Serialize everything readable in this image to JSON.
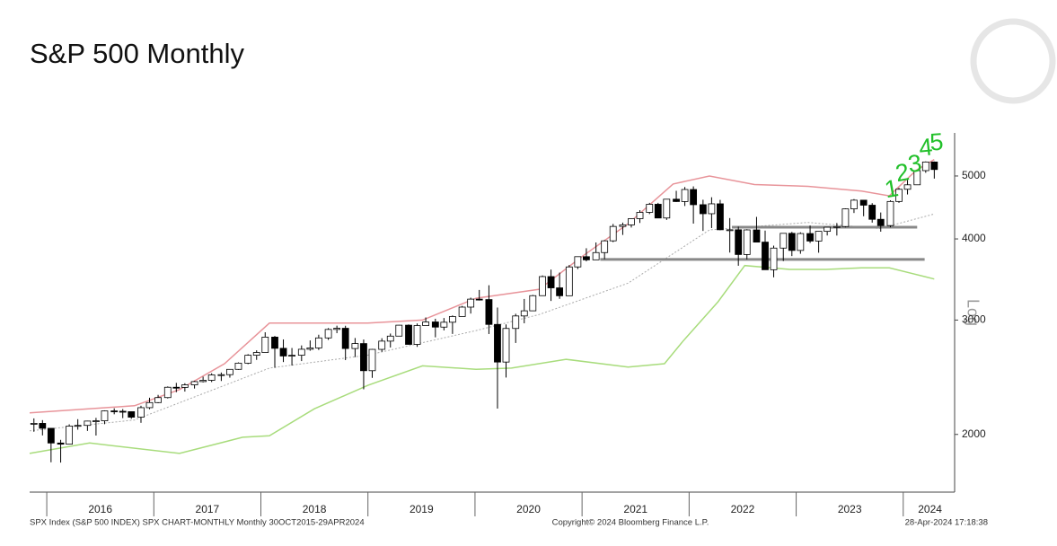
{
  "chart_data": {
    "type": "candlestick",
    "title": "S&P 500 Monthly",
    "y_label": "Log",
    "log_scale": true,
    "ylim": [
      1630,
      5825
    ],
    "yticks": [
      2000,
      3000,
      4000,
      5000
    ],
    "xlim": [
      2015.84,
      2024.48
    ],
    "xticks": [
      {
        "value": 2016.5,
        "label": "2016"
      },
      {
        "value": 2017.5,
        "label": "2017"
      },
      {
        "value": 2018.5,
        "label": "2018"
      },
      {
        "value": 2019.5,
        "label": "2019"
      },
      {
        "value": 2020.5,
        "label": "2020"
      },
      {
        "value": 2021.5,
        "label": "2021"
      },
      {
        "value": 2022.5,
        "label": "2022"
      },
      {
        "value": 2023.5,
        "label": "2023"
      },
      {
        "value": 2024.25,
        "label": "2024"
      }
    ],
    "year_dividers": [
      2016,
      2017,
      2018,
      2019,
      2020,
      2021,
      2022,
      2023,
      2024
    ],
    "up_color": "#ffffff",
    "down_color": "#000000",
    "x": [
      2015.88,
      2015.96,
      2016.04,
      2016.13,
      2016.21,
      2016.29,
      2016.38,
      2016.46,
      2016.54,
      2016.63,
      2016.71,
      2016.79,
      2016.88,
      2016.96,
      2017.04,
      2017.13,
      2017.21,
      2017.29,
      2017.38,
      2017.46,
      2017.54,
      2017.63,
      2017.71,
      2017.79,
      2017.88,
      2017.96,
      2018.04,
      2018.13,
      2018.21,
      2018.29,
      2018.38,
      2018.46,
      2018.54,
      2018.63,
      2018.71,
      2018.79,
      2018.88,
      2018.96,
      2019.04,
      2019.13,
      2019.21,
      2019.29,
      2019.38,
      2019.46,
      2019.54,
      2019.63,
      2019.71,
      2019.79,
      2019.88,
      2019.96,
      2020.04,
      2020.13,
      2020.21,
      2020.29,
      2020.38,
      2020.46,
      2020.54,
      2020.63,
      2020.71,
      2020.79,
      2020.88,
      2020.96,
      2021.04,
      2021.13,
      2021.21,
      2021.29,
      2021.38,
      2021.46,
      2021.54,
      2021.63,
      2021.71,
      2021.79,
      2021.88,
      2021.96,
      2022.04,
      2022.13,
      2022.21,
      2022.29,
      2022.38,
      2022.46,
      2022.54,
      2022.63,
      2022.71,
      2022.79,
      2022.88,
      2022.96,
      2023.04,
      2023.13,
      2023.21,
      2023.29,
      2023.38,
      2023.46,
      2023.54,
      2023.63,
      2023.71,
      2023.79,
      2023.88,
      2023.96,
      2024.04,
      2024.13,
      2024.21,
      2024.29
    ],
    "open": [
      2079,
      2080,
      2044,
      1940,
      1932,
      2060,
      2065,
      2097,
      2099,
      2174,
      2171,
      2168,
      2126,
      2199,
      2239,
      2279,
      2364,
      2363,
      2384,
      2412,
      2423,
      2470,
      2472,
      2519,
      2575,
      2648,
      2674,
      2824,
      2714,
      2641,
      2648,
      2705,
      2718,
      2816,
      2902,
      2914,
      2712,
      2760,
      2507,
      2704,
      2784,
      2834,
      2946,
      2752,
      2942,
      2980,
      2926,
      2977,
      3038,
      3141,
      3231,
      3226,
      2954,
      2585,
      2912,
      3044,
      3100,
      3271,
      3500,
      3363,
      3270,
      3622,
      3756,
      3714,
      3811,
      3973,
      4181,
      4204,
      4298,
      4395,
      4523,
      4308,
      4605,
      4567,
      4766,
      4516,
      4374,
      4530,
      4132,
      4132,
      3785,
      4130,
      3955,
      3586,
      3872,
      4080,
      3840,
      4077,
      3970,
      4109,
      4169,
      4180,
      4450,
      4589,
      4508,
      4288,
      4194,
      4568,
      4770,
      4846,
      5096,
      5254
    ],
    "high": [
      2117,
      2104,
      2044,
      1962,
      2073,
      2111,
      2100,
      2121,
      2178,
      2194,
      2188,
      2170,
      2214,
      2278,
      2301,
      2371,
      2401,
      2398,
      2419,
      2454,
      2484,
      2491,
      2520,
      2582,
      2658,
      2695,
      2873,
      2836,
      2801,
      2717,
      2742,
      2791,
      2848,
      2916,
      2941,
      2940,
      2815,
      2800,
      2708,
      2813,
      2860,
      2949,
      2954,
      2964,
      3028,
      3014,
      3022,
      3050,
      3154,
      3248,
      3338,
      3394,
      3136,
      2954,
      3068,
      3233,
      3280,
      3514,
      3588,
      3550,
      3646,
      3760,
      3870,
      3950,
      3983,
      4218,
      4238,
      4302,
      4429,
      4546,
      4546,
      4608,
      4744,
      4808,
      4819,
      4596,
      4637,
      4594,
      4307,
      4178,
      4140,
      4325,
      4120,
      3906,
      4080,
      4101,
      4095,
      4195,
      4111,
      4170,
      4232,
      4458,
      4607,
      4595,
      4541,
      4393,
      4587,
      4794,
      4932,
      5111,
      5265,
      5264
    ],
    "low": [
      2019,
      1993,
      1812,
      1810,
      1932,
      2034,
      2025,
      1992,
      2074,
      2148,
      2119,
      2114,
      2084,
      2187,
      2234,
      2272,
      2323,
      2328,
      2353,
      2405,
      2408,
      2417,
      2446,
      2515,
      2566,
      2605,
      2674,
      2533,
      2585,
      2553,
      2594,
      2691,
      2698,
      2796,
      2864,
      2603,
      2631,
      2347,
      2444,
      2681,
      2722,
      2834,
      2750,
      2728,
      2942,
      2822,
      2892,
      2856,
      3038,
      3070,
      3215,
      2855,
      2192,
      2447,
      2766,
      2966,
      3100,
      3271,
      3210,
      3234,
      3270,
      3594,
      3694,
      3714,
      3723,
      3955,
      4057,
      4165,
      4233,
      4368,
      4306,
      4279,
      4560,
      4495,
      4223,
      4115,
      4157,
      4125,
      3811,
      3637,
      3721,
      3955,
      3585,
      3491,
      3698,
      3764,
      3795,
      3943,
      3809,
      4049,
      4048,
      4167,
      4385,
      4335,
      4238,
      4104,
      4168,
      4546,
      4683,
      4845,
      5057,
      4954
    ],
    "close": [
      2080,
      2044,
      1940,
      1932,
      2060,
      2065,
      2097,
      2099,
      2174,
      2171,
      2168,
      2126,
      2199,
      2239,
      2279,
      2364,
      2363,
      2384,
      2412,
      2423,
      2470,
      2472,
      2519,
      2575,
      2648,
      2674,
      2824,
      2714,
      2641,
      2648,
      2705,
      2718,
      2816,
      2902,
      2914,
      2712,
      2760,
      2507,
      2704,
      2784,
      2834,
      2946,
      2752,
      2942,
      2980,
      2926,
      2977,
      3038,
      3141,
      3231,
      3226,
      2954,
      2585,
      2912,
      3044,
      3100,
      3271,
      3500,
      3363,
      3270,
      3622,
      3756,
      3714,
      3811,
      3973,
      4181,
      4204,
      4298,
      4395,
      4523,
      4308,
      4605,
      4567,
      4766,
      4516,
      4374,
      4530,
      4132,
      4132,
      3785,
      4130,
      3955,
      3586,
      3872,
      4080,
      3840,
      4077,
      3970,
      4109,
      4169,
      4180,
      4450,
      4589,
      4508,
      4288,
      4194,
      4568,
      4770,
      4846,
      5096,
      5254,
      5116
    ],
    "bands": [
      {
        "color": "#e8949a",
        "dash": false,
        "x": [
          2015.84,
          2016.82,
          2017.24,
          2017.66,
          2018.08,
          2019.0,
          2019.51,
          2020.01,
          2020.6,
          2021.01,
          2021.43,
          2021.85,
          2022.19,
          2022.61,
          2023.11,
          2023.61,
          2023.87,
          2024.12,
          2024.29
        ],
        "values": [
          2159,
          2214,
          2345,
          2570,
          2968,
          2968,
          3000,
          3241,
          3346,
          3768,
          4220,
          4860,
          5000,
          4850,
          4820,
          4740,
          4660,
          5100,
          5300
        ]
      },
      {
        "color": "#aaaaaa",
        "dash": true,
        "x": [
          2015.84,
          2016.82,
          2018.08,
          2019.0,
          2020.01,
          2020.6,
          2021.43,
          2022.19,
          2023.11,
          2023.78,
          2024.29
        ],
        "values": [
          2025,
          2105,
          2530,
          2650,
          2890,
          3060,
          3420,
          4130,
          4240,
          4150,
          4370
        ]
      },
      {
        "color": "#a8dc7c",
        "dash": false,
        "x": [
          2015.84,
          2016.4,
          2017.24,
          2017.83,
          2018.08,
          2018.5,
          2019.0,
          2019.51,
          2020.01,
          2020.34,
          2020.85,
          2021.43,
          2021.77,
          2021.94,
          2022.27,
          2022.52,
          2022.94,
          2023.28,
          2023.61,
          2023.87,
          2024.2,
          2024.29
        ],
        "values": [
          1870,
          1940,
          1870,
          1980,
          1990,
          2190,
          2380,
          2550,
          2520,
          2530,
          2610,
          2540,
          2570,
          2780,
          3200,
          3640,
          3590,
          3590,
          3610,
          3610,
          3500,
          3470
        ]
      }
    ],
    "hlines": [
      {
        "value": 4170,
        "x": [
          2022.4,
          2024.13
        ],
        "color": "#888888"
      },
      {
        "value": 3720,
        "x": [
          2021.17,
          2024.2
        ],
        "color": "#888888"
      }
    ],
    "annotations": {
      "color": "#22c02a",
      "texts": [
        "1",
        "2",
        "3",
        "4",
        "5"
      ]
    }
  },
  "footer": {
    "left": "SPX Index (S&P 500 INDEX) SPX CHART-MONTHLY  Monthly 30OCT2015-29APR2024",
    "center": "Copyright© 2024 Bloomberg Finance L.P.",
    "right": "28-Apr-2024 17:18:38"
  }
}
